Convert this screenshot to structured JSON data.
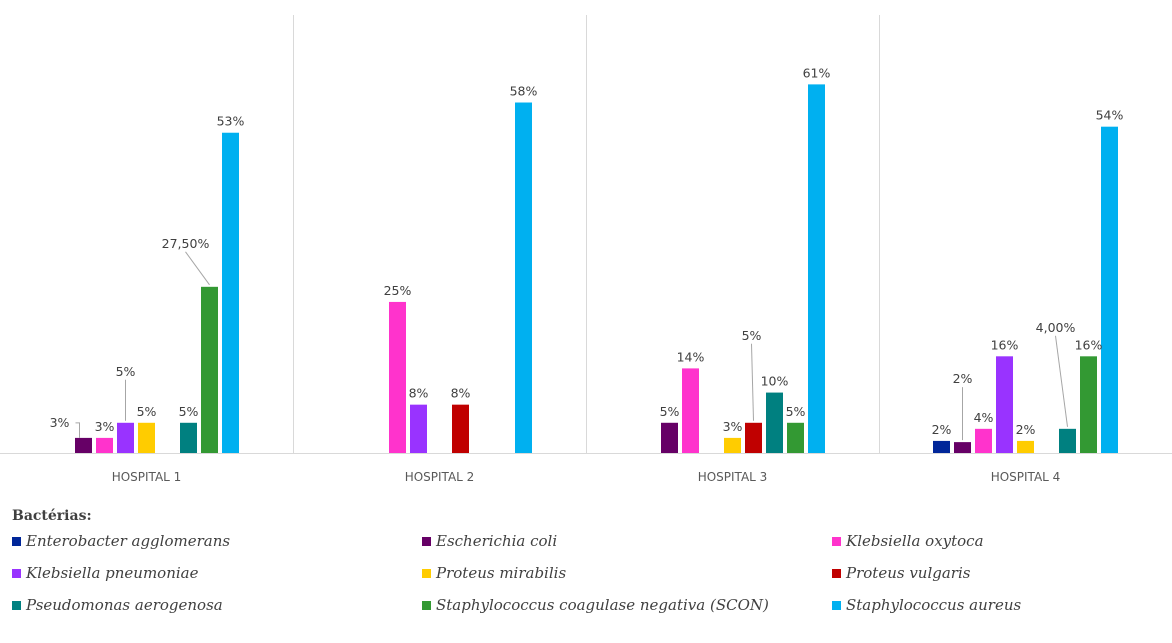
{
  "chart_data": {
    "type": "bar",
    "categories": [
      "HOSPITAL 1",
      "HOSPITAL 2",
      "HOSPITAL 3",
      "HOSPITAL 4"
    ],
    "legend_title": "Bactérias:",
    "ylim": [
      0,
      70
    ],
    "grid": false,
    "legend_position": "bottom",
    "series": [
      {
        "name": "Enterobacter agglomerans",
        "color": "#002699",
        "values": [
          null,
          null,
          null,
          2
        ],
        "labels": [
          "",
          "",
          "",
          "2%"
        ]
      },
      {
        "name": "Escherichia coli",
        "color": "#660066",
        "values": [
          2.5,
          null,
          5,
          1.8
        ],
        "labels": [
          "3%",
          "",
          "5%",
          "2%"
        ]
      },
      {
        "name": "Klebsiella oxytoca",
        "color": "#ff33cc",
        "values": [
          2.5,
          25,
          14,
          4
        ],
        "labels": [
          "3%",
          "25%",
          "14%",
          "4%"
        ]
      },
      {
        "name": "Klebsiella pneumoniae",
        "color": "#9933ff",
        "values": [
          5,
          8,
          null,
          16
        ],
        "labels": [
          "5%",
          "8%",
          "",
          "16%"
        ]
      },
      {
        "name": "Proteus mirabilis",
        "color": "#ffcc00",
        "values": [
          5,
          null,
          2.5,
          2
        ],
        "labels": [
          "5%",
          "",
          "3%",
          "2%"
        ]
      },
      {
        "name": "Proteus vulgaris",
        "color": "#c00000",
        "values": [
          null,
          8,
          5,
          null
        ],
        "labels": [
          "",
          "8%",
          "5%",
          ""
        ]
      },
      {
        "name": "Pseudomonas aerogenosa",
        "color": "#008080",
        "values": [
          5,
          null,
          10,
          4
        ],
        "labels": [
          "5%",
          "",
          "10%",
          "4,00%"
        ]
      },
      {
        "name": "Staphylococcus coagulase negativa (SCON)",
        "color": "#339933",
        "values": [
          27.5,
          null,
          5,
          16
        ],
        "labels": [
          "27,50%",
          "",
          "5%",
          "16%"
        ]
      },
      {
        "name": "Staphylococcus aureus",
        "color": "#00b0f0",
        "values": [
          53,
          58,
          61,
          54
        ],
        "labels": [
          "53%",
          "58%",
          "61%",
          "54%"
        ]
      }
    ]
  }
}
